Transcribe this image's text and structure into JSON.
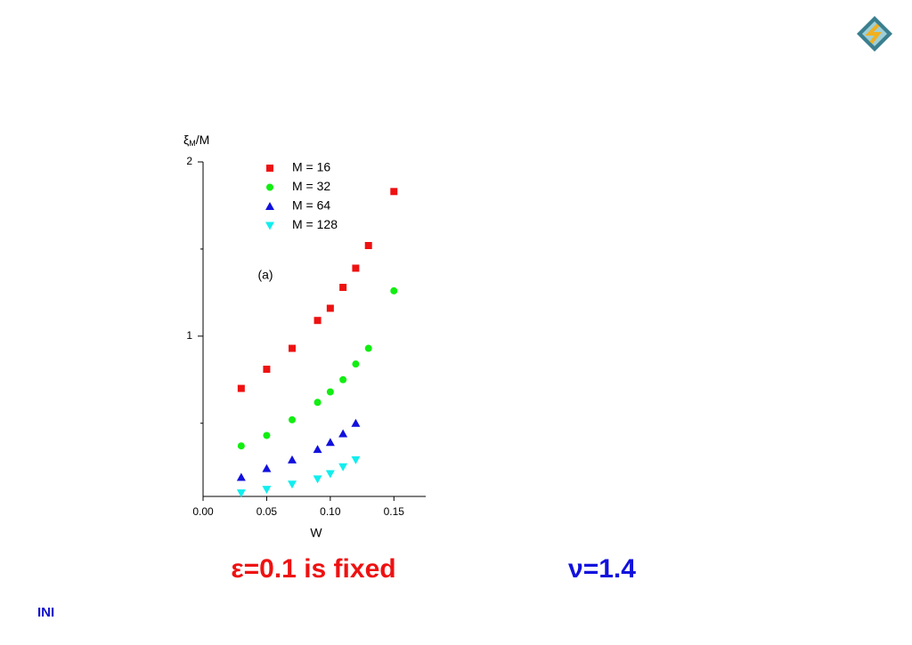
{
  "chart_data": {
    "type": "scatter",
    "xlabel": "W",
    "ylabel": {
      "symbol": "ξ",
      "subscript": "M",
      "rest": "/M"
    },
    "annotation": "(a)",
    "xlim": [
      0,
      0.175
    ],
    "ylim": [
      0.08,
      2
    ],
    "xticks": [
      {
        "value": 0,
        "label": "0.00"
      },
      {
        "value": 0.05,
        "label": "0.05"
      },
      {
        "value": 0.1,
        "label": "0.10"
      },
      {
        "value": 0.15,
        "label": "0.15"
      }
    ],
    "yticks": [
      1,
      2
    ],
    "yminorticks": [
      0.5,
      1.5
    ],
    "legend": "top",
    "series": [
      {
        "name": "M = 16",
        "color": "#ee1111",
        "marker": "square",
        "x": [
          0.03,
          0.05,
          0.07,
          0.09,
          0.1,
          0.11,
          0.12,
          0.13,
          0.15
        ],
        "values": [
          0.7,
          0.81,
          0.93,
          1.09,
          1.16,
          1.28,
          1.39,
          1.52,
          1.83
        ]
      },
      {
        "name": "M = 32",
        "color": "#11ee11",
        "marker": "circle",
        "x": [
          0.03,
          0.05,
          0.07,
          0.09,
          0.1,
          0.11,
          0.12,
          0.13,
          0.15
        ],
        "values": [
          0.37,
          0.43,
          0.52,
          0.62,
          0.68,
          0.75,
          0.84,
          0.93,
          1.26
        ]
      },
      {
        "name": "M = 64",
        "color": "#1111dd",
        "marker": "triangle-up",
        "x": [
          0.03,
          0.05,
          0.07,
          0.09,
          0.1,
          0.11,
          0.12
        ],
        "values": [
          0.19,
          0.24,
          0.29,
          0.35,
          0.39,
          0.44,
          0.5
        ]
      },
      {
        "name": "M = 128",
        "color": "#11eeee",
        "marker": "triangle-down",
        "x": [
          0.03,
          0.05,
          0.07,
          0.09,
          0.1,
          0.11,
          0.12
        ],
        "values": [
          0.1,
          0.12,
          0.15,
          0.18,
          0.21,
          0.25,
          0.29
        ]
      }
    ]
  },
  "notes": {
    "epsilon": "ε=0.1 is fixed",
    "nu": "ν=1.4"
  },
  "footer": "INI"
}
